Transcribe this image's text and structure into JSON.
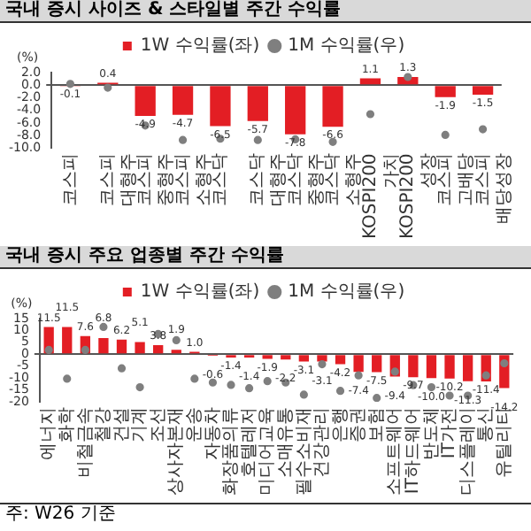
{
  "chart_data": [
    {
      "type": "bar",
      "title": "국내 증시 사이즈 & 스타일별 주간 수익률",
      "ylabel": "(%)",
      "categories": [
        "코스피",
        "코스피 대형주",
        "코스피 중형주",
        "코스피 소형주",
        "코스닥",
        "코스닥 대형주",
        "코스닥 중형주",
        "코스닥 소형주",
        "KOSPI200 가치",
        "KOSPI200 성장",
        "코스피 고배당",
        "코스피 배당성장"
      ],
      "series": [
        {
          "name": "1W 수익률(좌)",
          "color": "#e31e24",
          "values": [
            -0.1,
            0.4,
            -4.9,
            -4.7,
            -6.5,
            -5.7,
            -7.8,
            -6.6,
            1.1,
            1.3,
            -1.9,
            -1.5
          ],
          "value_labels": [
            "-0.1",
            "0.4",
            "-4.9",
            "-4.7",
            "-6.5",
            "-5.7",
            "-7.8",
            "-6.6",
            "1.1",
            "1.3",
            "-1.9",
            "-1.5"
          ]
        },
        {
          "name": "1M 수익률(우)",
          "type": "scatter",
          "color": "#7f7f7f",
          "x": [
            "코스피",
            "코스피 대형주",
            "코스피 중형주",
            "코스피 소형주",
            "코스닥",
            "코스닥 대형주",
            "코스닥 중형주",
            "코스닥 소형주",
            "KOSPI200 가치",
            "KOSPI200 성장",
            "코스피 고배당",
            "코스피 배당성장"
          ],
          "values": [
            0.2,
            -0.4,
            -6.4,
            -8.7,
            -8.5,
            -8.7,
            -8.6,
            -9.0,
            -4.6,
            1.3,
            -7.9,
            -7.0
          ]
        }
      ],
      "ylim": [
        -10,
        2
      ],
      "yticks": [
        {
          "value": 2,
          "label": "2.0"
        },
        {
          "value": 0,
          "label": "0.0"
        },
        {
          "value": -2,
          "label": "-2.0"
        },
        {
          "value": -4,
          "label": "-4.0"
        },
        {
          "value": -6,
          "label": "-6.0"
        },
        {
          "value": -8,
          "label": "-8.0"
        },
        {
          "value": -10,
          "label": "-10.0"
        }
      ],
      "legend": "top",
      "marker": "circle"
    },
    {
      "type": "bar",
      "title": "국내 증시 주요 업종별 주간 수익률",
      "ylabel": "(%)",
      "categories": [
        "에너지",
        "화학",
        "비철금속",
        "철강",
        "건설",
        "기계",
        "조선",
        "상사자본재",
        "운송",
        "자동차",
        "화장품의류",
        "호텔레저",
        "미디어교육",
        "소매유통",
        "필수소비재",
        "건강관리",
        "은행",
        "증권",
        "보험",
        "소프트웨어",
        "IT하드웨어",
        "반도체",
        "IT가전",
        "디스플레이",
        "통신",
        "유틸리티"
      ],
      "series": [
        {
          "name": "1W 수익률(좌)",
          "color": "#e31e24",
          "values": [
            11.5,
            11.5,
            7.6,
            6.8,
            6.2,
            5.1,
            3.8,
            1.9,
            1.0,
            -0.6,
            -1.4,
            -1.4,
            -1.9,
            -2.2,
            -3.1,
            -3.1,
            -4.2,
            -7.4,
            -7.5,
            -9.4,
            -9.7,
            -10.0,
            -10.2,
            -11.3,
            -11.4,
            -14.2
          ],
          "value_labels": [
            "11.5",
            "11.5",
            "7.6",
            "6.8",
            "6.2",
            "5.1",
            "3.8",
            "1.9",
            "1.0",
            "-0.6",
            "-1.4",
            "-1.4",
            "-1.9",
            "-2.2",
            "-3.1",
            "-3.1",
            "-4.2",
            "-7.4",
            "-7.5",
            "-9.4",
            "-9.7",
            "-10.0",
            "-10.2",
            "-11.3",
            "-11.4",
            "-14.2"
          ]
        },
        {
          "name": "1M 수익률(우)",
          "type": "scatter",
          "color": "#7f7f7f",
          "x": [
            "에너지",
            "화학",
            "비철금속",
            "철강",
            "건설",
            "기계",
            "조선",
            "상사자본재",
            "운송",
            "자동차",
            "화장품의류",
            "호텔레저",
            "미디어교육",
            "소매유통",
            "필수소비재",
            "건강관리",
            "은행",
            "증권",
            "보험",
            "소프트웨어",
            "IT하드웨어",
            "반도체",
            "IT가전",
            "디스플레이",
            "통신",
            "유틸리티"
          ],
          "values": [
            1.8,
            -10.3,
            1.8,
            11.5,
            -5.9,
            -13.9,
            8.5,
            5.9,
            -10.3,
            -11.9,
            -12.9,
            -14.3,
            -11.3,
            -11.9,
            -17,
            -4.2,
            -15.4,
            -8.9,
            -18.4,
            -7.3,
            -13,
            -13.9,
            -17.4,
            -17.4,
            -8.9,
            -3.8
          ]
        }
      ],
      "ylim": [
        -20,
        15
      ],
      "yticks": [
        15,
        10,
        5,
        0,
        -5,
        -10,
        -15,
        -20
      ],
      "legend": "top",
      "marker": "circle",
      "annotations": [
        "주: W26 기준"
      ]
    }
  ]
}
